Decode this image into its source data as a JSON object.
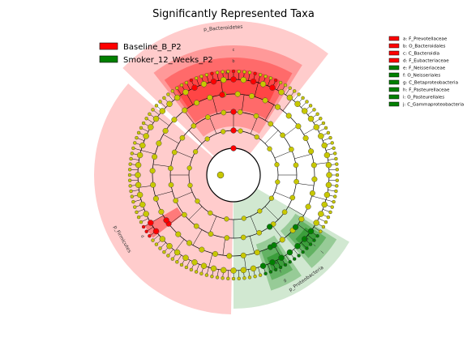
{
  "chart_data": {
    "type": "cladogram",
    "title": "Significantly Represented Taxa",
    "groups": [
      {
        "name": "Baseline_B_P2",
        "color": "#ff0000"
      },
      {
        "name": "Smoker_12_Weeks_P2",
        "color": "#008000"
      }
    ],
    "taxa_legend": [
      {
        "letter": "a",
        "taxon": "a: F_Prevotellaceae",
        "group": "Baseline_B_P2"
      },
      {
        "letter": "b",
        "taxon": "b: O_Bacteroidales",
        "group": "Baseline_B_P2"
      },
      {
        "letter": "c",
        "taxon": "c: C_Bacteroidia",
        "group": "Baseline_B_P2"
      },
      {
        "letter": "d",
        "taxon": "d: F_Eubacteriaceae",
        "group": "Baseline_B_P2"
      },
      {
        "letter": "e",
        "taxon": "e: F_Neisseriaceae",
        "group": "Smoker_12_Weeks_P2"
      },
      {
        "letter": "f",
        "taxon": "f: O_Neisseriales",
        "group": "Smoker_12_Weeks_P2"
      },
      {
        "letter": "g",
        "taxon": "g: C_Betaproteobacteria",
        "group": "Smoker_12_Weeks_P2"
      },
      {
        "letter": "h",
        "taxon": "h: F_Pasteurellaceae",
        "group": "Smoker_12_Weeks_P2"
      },
      {
        "letter": "i",
        "taxon": "i: O_Pasteurellales",
        "group": "Smoker_12_Weeks_P2"
      },
      {
        "letter": "j",
        "taxon": "j: C_Gammaproteobacteria",
        "group": "Smoker_12_Weeks_P2"
      }
    ],
    "phylum_labels": [
      {
        "text": "p_Bacteroidetes",
        "group": "Baseline_B_P2"
      },
      {
        "text": "p_Firmicutes",
        "group": "Baseline_B_P2"
      },
      {
        "text": "p_Proteobacteria",
        "group": "Smoker_12_Weeks_P2"
      }
    ],
    "node_colors": {
      "neutral": "#c8c800",
      "group_a": "#ff0000",
      "group_b": "#008000"
    }
  }
}
